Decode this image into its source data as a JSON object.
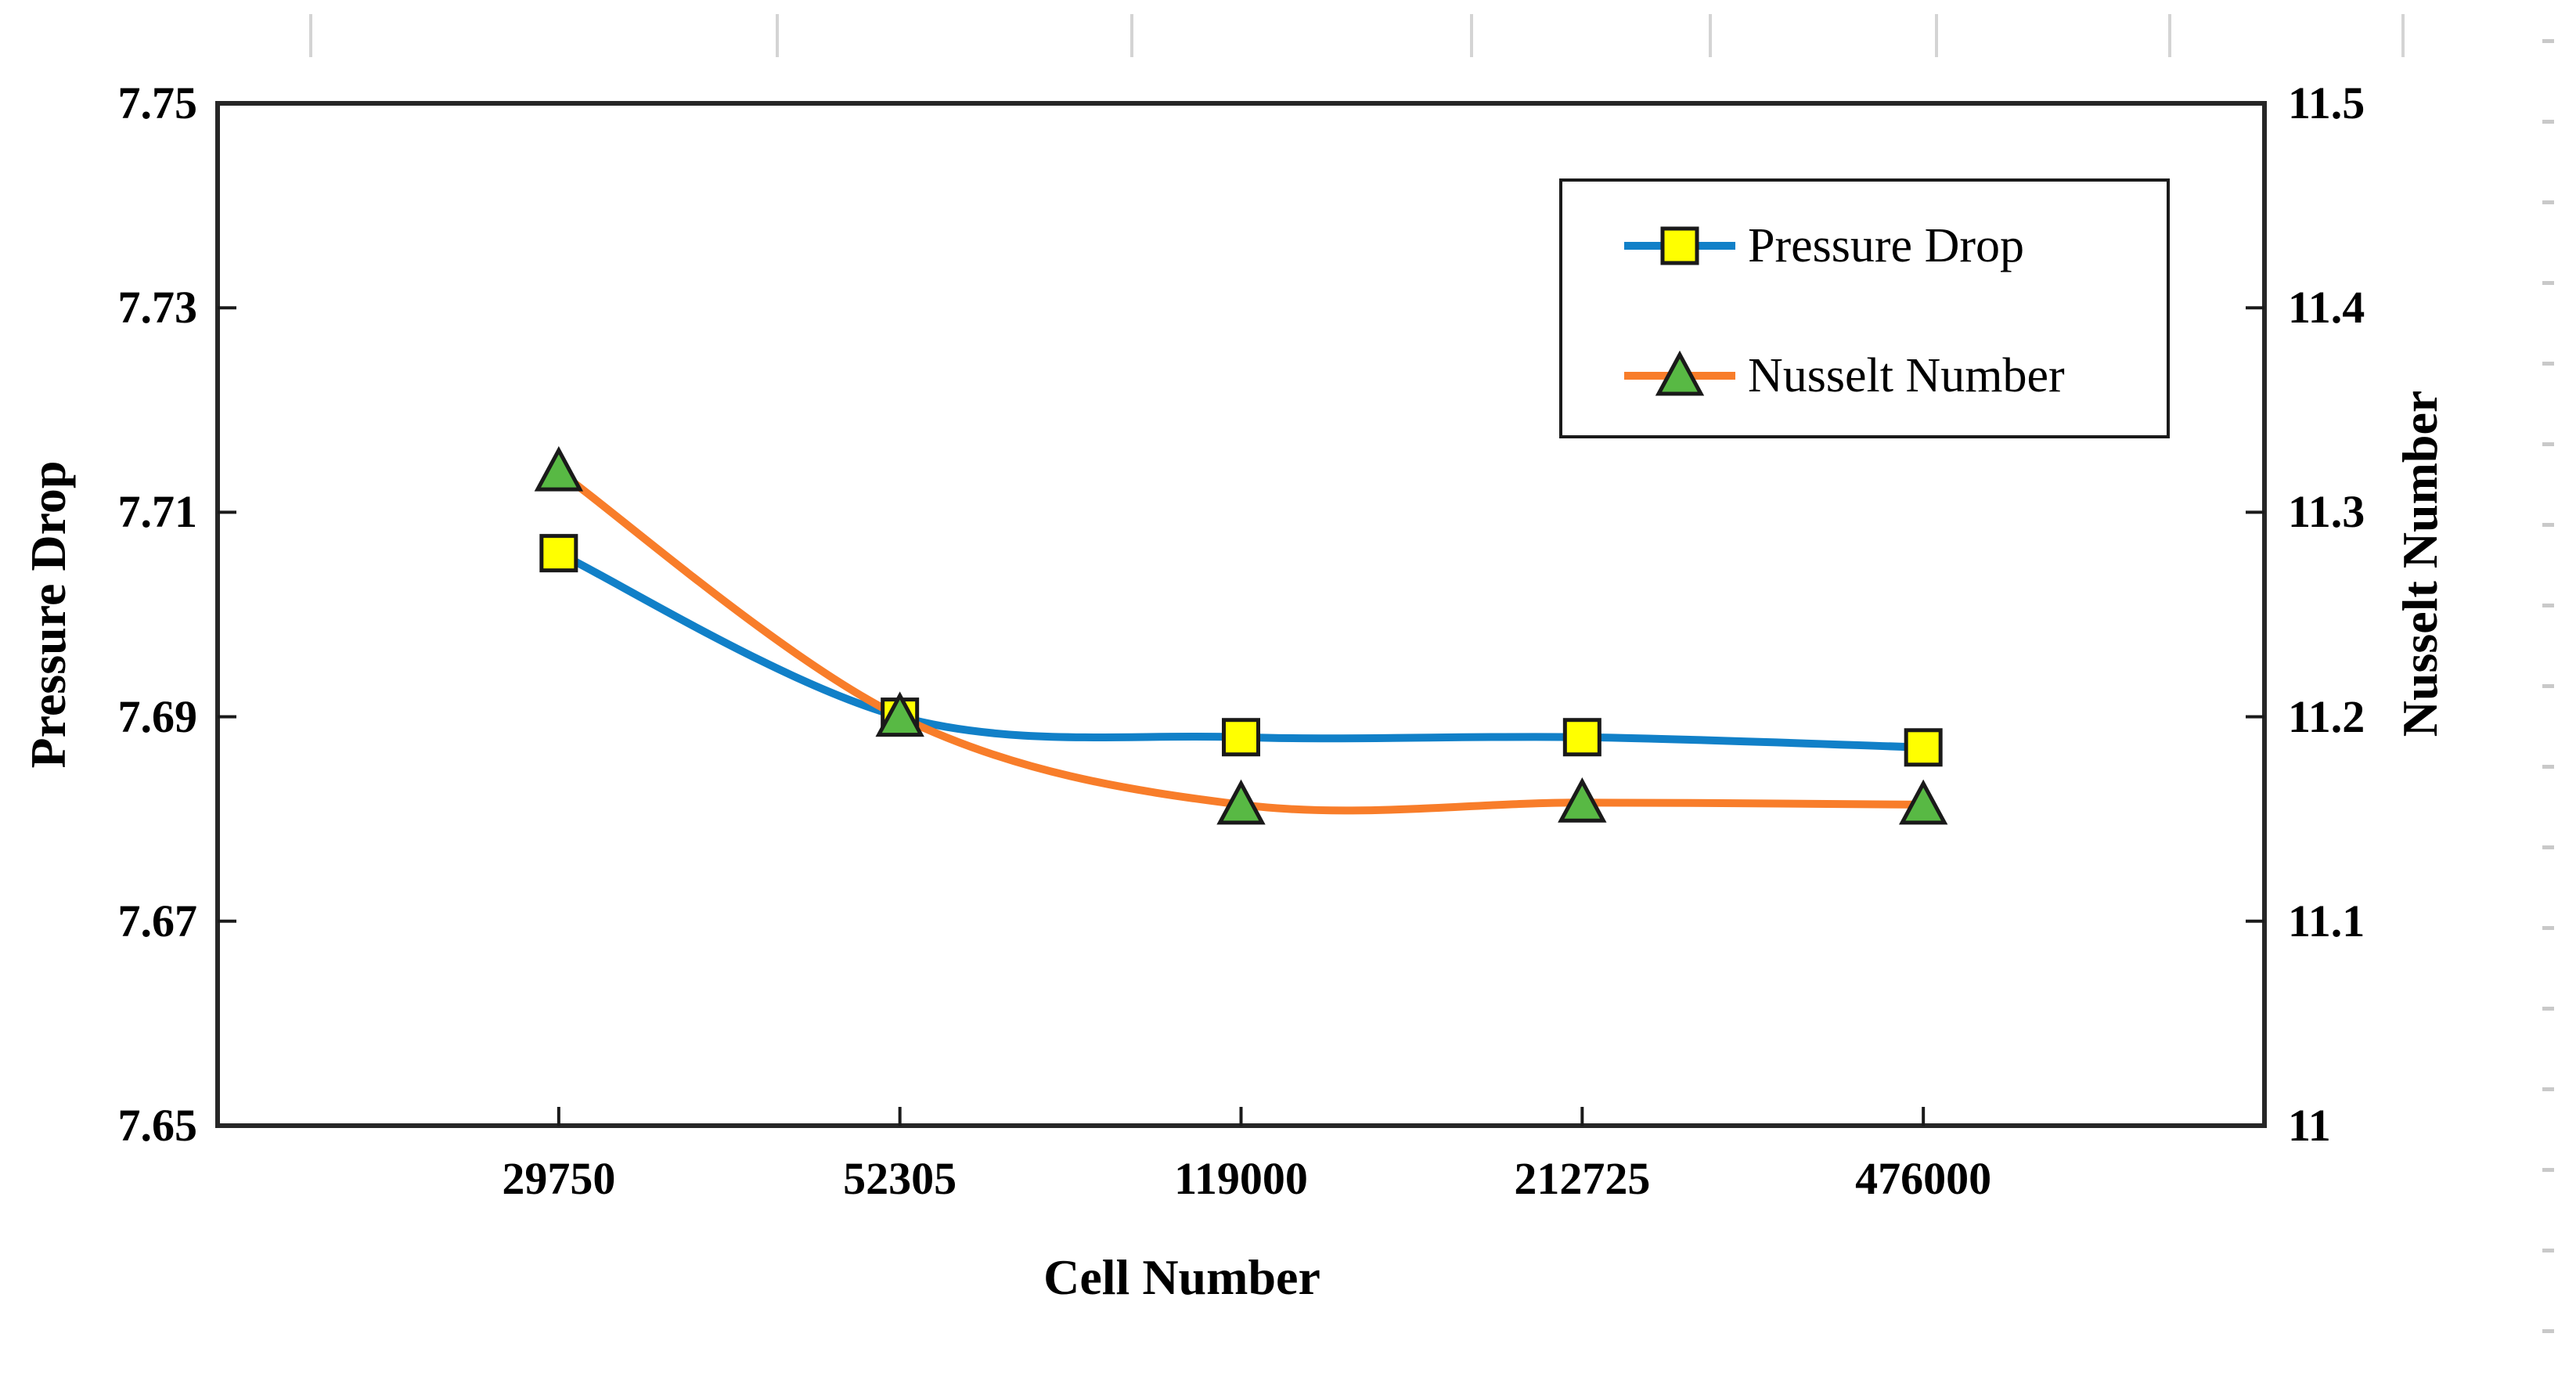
{
  "chart_data": {
    "type": "line",
    "title": "",
    "xlabel": "Cell Number",
    "x_categories": [
      "29750",
      "52305",
      "119000",
      "212725",
      "476000"
    ],
    "left_axis": {
      "label": "Pressure Drop",
      "min": 7.65,
      "max": 7.75,
      "tick_labels": [
        "7.75",
        "7.73",
        "7.71",
        "7.69",
        "7.67",
        "7.65"
      ]
    },
    "right_axis": {
      "label": "Nusselt Number",
      "min": 11.0,
      "max": 11.5,
      "tick_labels": [
        "11.5",
        "11.4",
        "11.3",
        "11.2",
        "11.1",
        "11"
      ]
    },
    "series": [
      {
        "name": "Pressure Drop",
        "axis": "left",
        "line_color": "#1180C8",
        "marker": "square",
        "marker_fill": "#FFFF00",
        "marker_stroke": "#1a1a1a",
        "values": [
          7.706,
          7.69,
          7.688,
          7.688,
          7.687
        ]
      },
      {
        "name": "Nusselt Number",
        "axis": "right",
        "line_color": "#F87D2A",
        "marker": "triangle",
        "marker_fill": "#58B944",
        "marker_stroke": "#1a1a1a",
        "values": [
          11.32,
          11.2,
          11.157,
          11.158,
          11.157
        ]
      }
    ],
    "legend": {
      "position": "top-right",
      "entries": [
        "Pressure Drop",
        "Nusselt Number"
      ]
    },
    "grid": false,
    "frame_color": "#262626",
    "smooth_lines": true
  },
  "page_artifacts": {
    "top_edge_tick_x": [
      395,
      991,
      1444,
      1878,
      2183,
      2472,
      2770,
      3068
    ],
    "right_edge_dash_y": [
      50,
      153,
      256,
      359,
      462,
      565,
      668,
      771,
      874,
      977,
      1080,
      1183,
      1286,
      1389,
      1492,
      1595,
      1698
    ]
  }
}
